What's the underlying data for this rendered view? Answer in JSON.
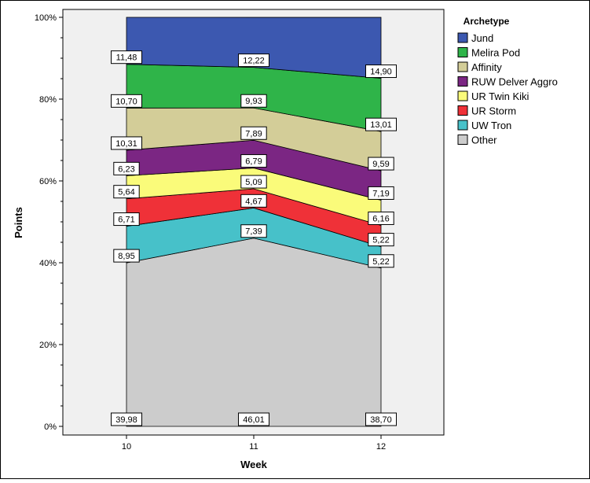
{
  "chart_data": {
    "type": "area",
    "stacking": "percent",
    "xlabel": "Week",
    "ylabel": "Points",
    "x": [
      "10",
      "11",
      "12"
    ],
    "ylim": [
      0,
      100
    ],
    "y_ticks": [
      "0%",
      "20%",
      "40%",
      "60%",
      "80%",
      "100%"
    ],
    "legend_title": "Archetype",
    "legend_position": "right",
    "series": [
      {
        "name": "Other",
        "color": "#cccccc",
        "values": [
          39.98,
          46.01,
          38.7
        ],
        "labels": [
          "39,98",
          "46,01",
          "38,70"
        ]
      },
      {
        "name": "UW Tron",
        "color": "#47c1c9",
        "values": [
          8.95,
          7.39,
          5.22
        ],
        "labels": [
          "8,95",
          "7,39",
          "5,22"
        ]
      },
      {
        "name": "UR Storm",
        "color": "#ef3138",
        "values": [
          6.71,
          4.67,
          5.22
        ],
        "labels": [
          "6,71",
          "4,67",
          "5,22"
        ]
      },
      {
        "name": "UR Twin Kiki",
        "color": "#fafb7a",
        "values": [
          5.64,
          5.09,
          6.16
        ],
        "labels": [
          "5,64",
          "5,09",
          "6,16"
        ]
      },
      {
        "name": "RUW Delver Aggro",
        "color": "#7b2683",
        "values": [
          6.23,
          6.79,
          7.19
        ],
        "labels": [
          "6,23",
          "6,79",
          "7,19"
        ]
      },
      {
        "name": "Affinity",
        "color": "#d3cd98",
        "values": [
          10.31,
          7.89,
          9.59
        ],
        "labels": [
          "10,31",
          "7,89",
          "9,59"
        ]
      },
      {
        "name": "Melira Pod",
        "color": "#2fb449",
        "values": [
          10.7,
          9.93,
          13.01
        ],
        "labels": [
          "10,70",
          "9,93",
          "13,01"
        ]
      },
      {
        "name": "Jund",
        "color": "#3c58b0",
        "values": [
          11.48,
          12.22,
          14.9
        ],
        "labels": [
          "11,48",
          "12,22",
          "14,90"
        ]
      }
    ],
    "legend_order": [
      "Jund",
      "Melira Pod",
      "Affinity",
      "RUW Delver Aggro",
      "UR Twin Kiki",
      "UR Storm",
      "UW Tron",
      "Other"
    ]
  }
}
